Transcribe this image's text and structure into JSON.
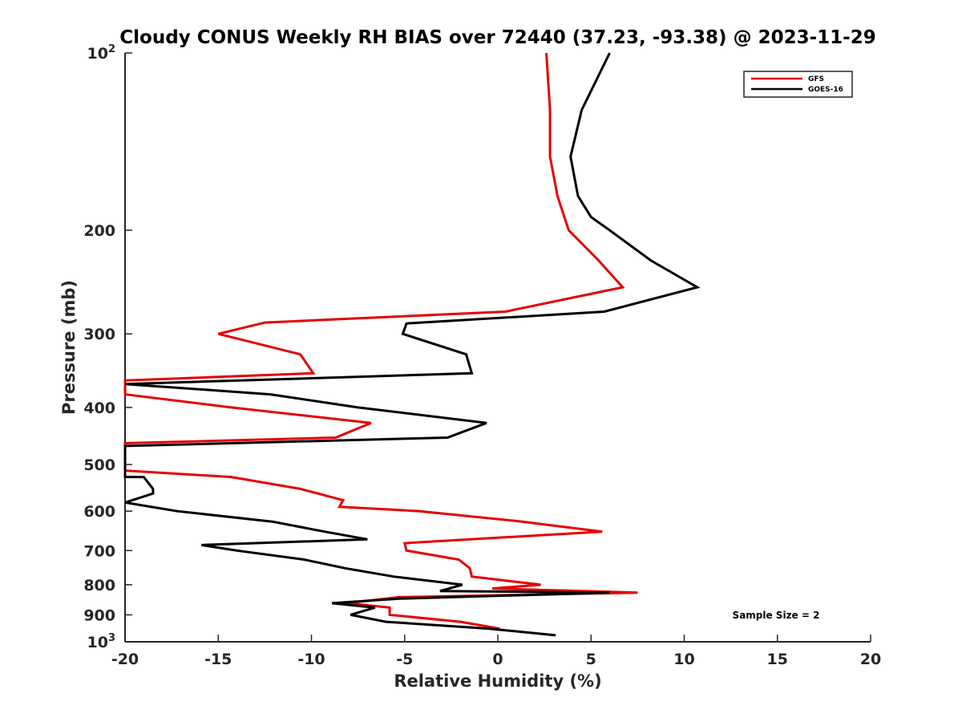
{
  "chart_data": {
    "type": "line",
    "title": "Cloudy CONUS Weekly RH BIAS over 72440 (37.23, -93.38) @ 2023-11-29",
    "xlabel": "Relative Humidity (%)",
    "ylabel": "Pressure (mb)",
    "xlim": [
      -20,
      20
    ],
    "ylim": [
      100,
      1000
    ],
    "y_scale": "log",
    "y_reversed": true,
    "grid": false,
    "legend_position": "top-right",
    "x_ticks": [
      "-20",
      "-15",
      "-10",
      "-5",
      "0",
      "5",
      "10",
      "15",
      "20"
    ],
    "y_ticks": [
      {
        "value": 100,
        "base": "10",
        "exp": "2"
      },
      {
        "value": 200,
        "label": "200"
      },
      {
        "value": 300,
        "label": "300"
      },
      {
        "value": 400,
        "label": "400"
      },
      {
        "value": 500,
        "label": "500"
      },
      {
        "value": 600,
        "label": "600"
      },
      {
        "value": 700,
        "label": "700"
      },
      {
        "value": 800,
        "label": "800"
      },
      {
        "value": 900,
        "label": "900"
      },
      {
        "value": 1000,
        "base": "10",
        "exp": "3"
      }
    ],
    "annotation": "Sample Size = 2",
    "series": [
      {
        "name": "GFS",
        "color": "#e60000",
        "points": [
          [
            2.6,
            100
          ],
          [
            2.8,
            125
          ],
          [
            2.8,
            150
          ],
          [
            3.2,
            175
          ],
          [
            3.8,
            200
          ],
          [
            5.4,
            225
          ],
          [
            6.7,
            250
          ],
          [
            0.4,
            275
          ],
          [
            -12.5,
            287
          ],
          [
            -15.0,
            300
          ],
          [
            -10.6,
            325
          ],
          [
            -9.9,
            350
          ],
          [
            -20.0,
            360
          ],
          [
            -20.0,
            380
          ],
          [
            -14.3,
            400
          ],
          [
            -6.8,
            425
          ],
          [
            -8.7,
            450
          ],
          [
            -20.0,
            460
          ],
          [
            -20.0,
            512
          ],
          [
            -14.3,
            525
          ],
          [
            -10.6,
            550
          ],
          [
            -8.3,
            575
          ],
          [
            -8.5,
            590
          ],
          [
            -4.2,
            600
          ],
          [
            1.3,
            625
          ],
          [
            5.6,
            650
          ],
          [
            -5.0,
            680
          ],
          [
            -4.9,
            700
          ],
          [
            -2.1,
            725
          ],
          [
            -1.5,
            750
          ],
          [
            -1.4,
            775
          ],
          [
            2.3,
            800
          ],
          [
            -0.3,
            812
          ],
          [
            7.5,
            825
          ],
          [
            -5.3,
            840
          ],
          [
            -8.1,
            860
          ],
          [
            -5.8,
            875
          ],
          [
            -5.8,
            900
          ],
          [
            -2.0,
            925
          ],
          [
            0.1,
            950
          ]
        ]
      },
      {
        "name": "GOES-16",
        "color": "#000000",
        "points": [
          [
            6.0,
            100
          ],
          [
            4.5,
            125
          ],
          [
            3.9,
            150
          ],
          [
            4.3,
            175
          ],
          [
            5.0,
            190
          ],
          [
            6.0,
            200
          ],
          [
            8.2,
            225
          ],
          [
            10.7,
            250
          ],
          [
            5.7,
            275
          ],
          [
            -4.9,
            288
          ],
          [
            -5.1,
            300
          ],
          [
            -1.7,
            325
          ],
          [
            -1.4,
            350
          ],
          [
            -20.0,
            365
          ],
          [
            -12.2,
            380
          ],
          [
            -7.5,
            400
          ],
          [
            -0.6,
            425
          ],
          [
            -2.7,
            450
          ],
          [
            -20.0,
            465
          ],
          [
            -20.0,
            525
          ],
          [
            -19.0,
            525
          ],
          [
            -18.5,
            550
          ],
          [
            -18.5,
            560
          ],
          [
            -20.0,
            580
          ],
          [
            -17.2,
            600
          ],
          [
            -12.1,
            625
          ],
          [
            -9.3,
            650
          ],
          [
            -7.0,
            670
          ],
          [
            -15.9,
            685
          ],
          [
            -14.0,
            700
          ],
          [
            -10.4,
            725
          ],
          [
            -8.2,
            750
          ],
          [
            -5.6,
            775
          ],
          [
            -1.9,
            800
          ],
          [
            -2.5,
            810
          ],
          [
            -3.1,
            820
          ],
          [
            6.0,
            825
          ],
          [
            -5.3,
            845
          ],
          [
            -8.9,
            860
          ],
          [
            -6.6,
            875
          ],
          [
            -7.9,
            900
          ],
          [
            -6.0,
            925
          ],
          [
            -0.5,
            950
          ],
          [
            3.1,
            975
          ]
        ]
      }
    ]
  }
}
